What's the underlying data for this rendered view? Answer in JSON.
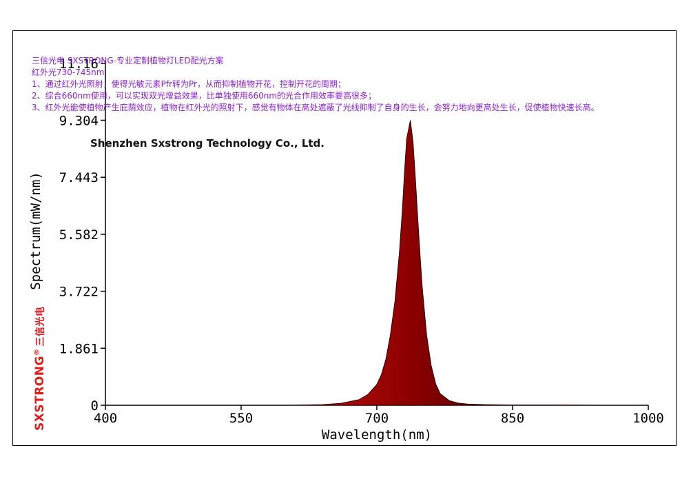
{
  "colors": {
    "note_text": "#8b1fd6",
    "brand_red": "#e21b1b",
    "peak_dark": "#1a0000",
    "peak_red": "#8b0000"
  },
  "notes": [
    "三信光电 SXSTRONG-专业定制植物灯LED配光方案",
    "红外光730-745nm",
    "1、通过红外光照射，使得光敏元素Pfr转为Pr，从而抑制植物开花，控制开花的周期；",
    "2、综合660nm使用，可以实现双光增益效果，比单独使用660nm的光合作用效率要高很多；",
    "3、红外光能使植物产生庇荫效应，植物在红外光的照射下，感觉有物体在高处遮蔽了光线抑制了自身的生长，会努力地向更高处生长，促使植物快速长高。"
  ],
  "company": "Shenzhen Sxstrong Technology Co., Ltd.",
  "logo": {
    "brand": "SXSTRONG",
    "registered": "®",
    "chinese": "三信光电"
  },
  "chart_data": {
    "type": "area",
    "xlabel": "Wavelength(nm)",
    "ylabel": "Spectrum(mW/nm)",
    "xlim": [
      400,
      1000
    ],
    "ylim": [
      0,
      11.16
    ],
    "x_ticks": [
      "400",
      "550",
      "700",
      "850",
      "1000"
    ],
    "x_tick_values": [
      400,
      550,
      700,
      850,
      1000
    ],
    "y_ticks": [
      "0",
      "1.861",
      "3.722",
      "5.582",
      "7.443",
      "9.304",
      "11.16"
    ],
    "y_tick_values": [
      0,
      1.861,
      3.722,
      5.582,
      7.443,
      9.304,
      11.16
    ],
    "grid": false,
    "series": [
      {
        "x": [
          600,
          640,
          660,
          680,
          690,
          700,
          705,
          710,
          715,
          720,
          725,
          728,
          731,
          733,
          735,
          737,
          740,
          743,
          745,
          748,
          750,
          755,
          760,
          765,
          770,
          780,
          790,
          800,
          820,
          850,
          900,
          950,
          1000
        ],
        "values": [
          0.0,
          0.02,
          0.06,
          0.18,
          0.35,
          0.68,
          1.0,
          1.5,
          2.3,
          3.4,
          5.0,
          6.3,
          7.8,
          8.7,
          9.0,
          9.3,
          8.6,
          7.2,
          6.2,
          4.8,
          3.9,
          2.3,
          1.3,
          0.7,
          0.38,
          0.15,
          0.07,
          0.04,
          0.02,
          0.01,
          0.01,
          0.0,
          0.0
        ]
      }
    ]
  }
}
